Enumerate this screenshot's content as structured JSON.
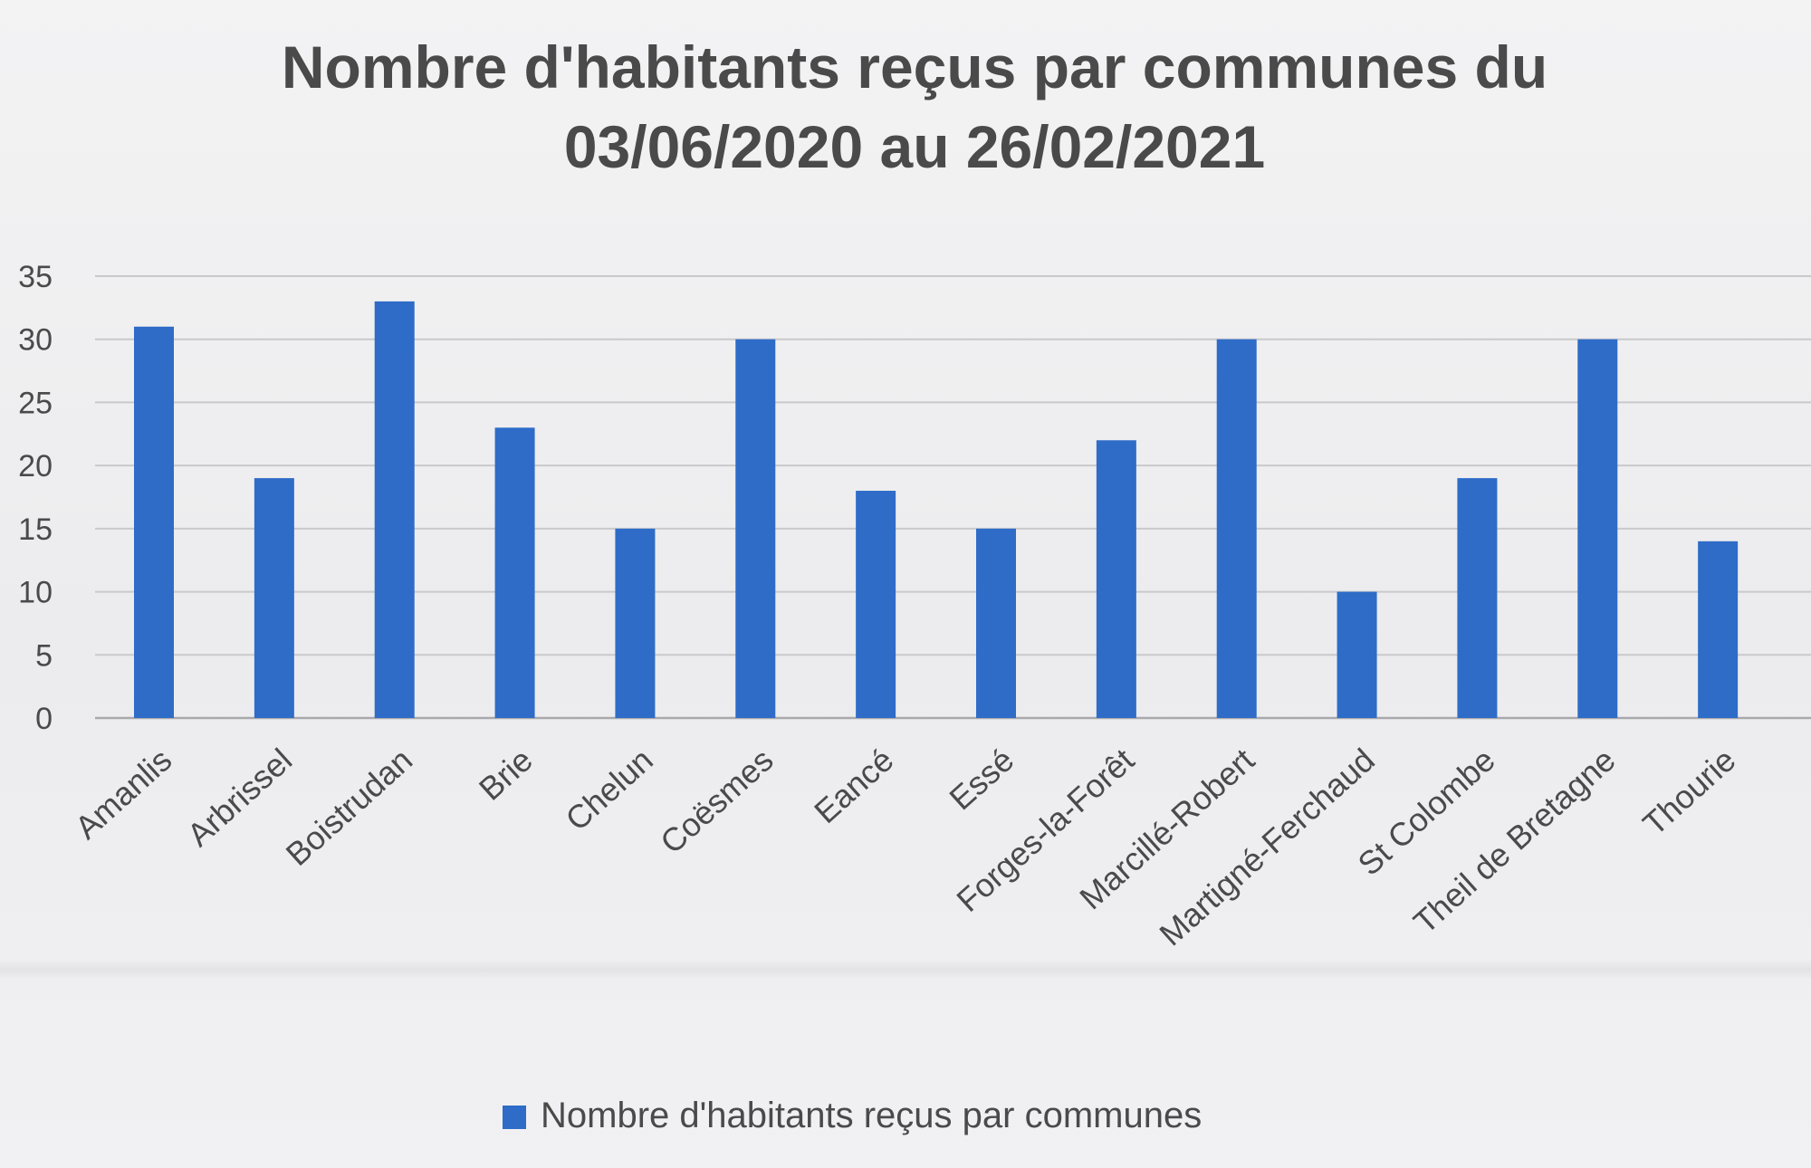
{
  "chart_data": {
    "type": "bar",
    "title": "Nombre d'habitants reçus par communes du",
    "subtitle": "03/06/2020 au 26/02/2021",
    "categories": [
      "Amanlis",
      "Arbrissel",
      "Boistrudan",
      "Brie",
      "Chelun",
      "Coësmes",
      "Eancé",
      "Essé",
      "Forges-la-Forêt",
      "Marcillé-Robert",
      "Martigné-Ferchaud",
      "St Colombe",
      "Theil de Bretagne",
      "Thourie"
    ],
    "series": [
      {
        "name": "Nombre d'habitants reçus par communes",
        "values": [
          31,
          19,
          33,
          23,
          15,
          30,
          18,
          15,
          22,
          30,
          10,
          19,
          30,
          14
        ],
        "color": "#2e6cc8"
      }
    ],
    "ylim": [
      0,
      35
    ],
    "yticks": [
      0,
      5,
      10,
      15,
      20,
      25,
      30,
      35
    ],
    "grid": true,
    "legend_position": "bottom",
    "xlabel": "",
    "ylabel": "",
    "colors": {
      "bar": "#2e6cc8",
      "grid": "#c9c9cc",
      "text": "#4a4a4a"
    }
  }
}
